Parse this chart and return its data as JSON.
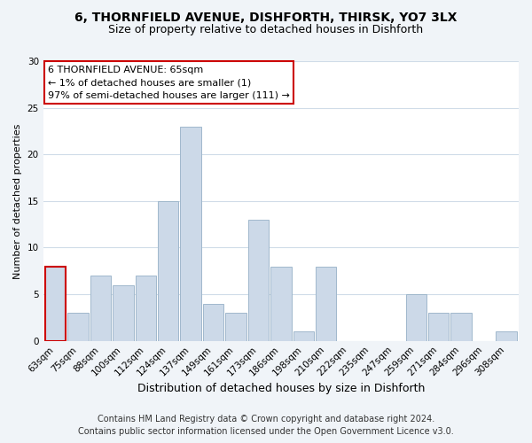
{
  "title": "6, THORNFIELD AVENUE, DISHFORTH, THIRSK, YO7 3LX",
  "subtitle": "Size of property relative to detached houses in Dishforth",
  "xlabel": "Distribution of detached houses by size in Dishforth",
  "ylabel": "Number of detached properties",
  "bar_labels": [
    "63sqm",
    "75sqm",
    "88sqm",
    "100sqm",
    "112sqm",
    "124sqm",
    "137sqm",
    "149sqm",
    "161sqm",
    "173sqm",
    "186sqm",
    "198sqm",
    "210sqm",
    "222sqm",
    "235sqm",
    "247sqm",
    "259sqm",
    "271sqm",
    "284sqm",
    "296sqm",
    "308sqm"
  ],
  "bar_values": [
    8,
    3,
    7,
    6,
    7,
    15,
    23,
    4,
    3,
    13,
    8,
    1,
    8,
    0,
    0,
    0,
    5,
    3,
    3,
    0,
    1
  ],
  "bar_color": "#ccd9e8",
  "bar_edge_color": "#a0b8cc",
  "highlight_bar_index": 0,
  "highlight_edge_color": "#cc0000",
  "ylim": [
    0,
    30
  ],
  "yticks": [
    0,
    5,
    10,
    15,
    20,
    25,
    30
  ],
  "annotation_title": "6 THORNFIELD AVENUE: 65sqm",
  "annotation_line1": "← 1% of detached houses are smaller (1)",
  "annotation_line2": "97% of semi-detached houses are larger (111) →",
  "annotation_box_facecolor": "#ffffff",
  "annotation_box_edgecolor": "#cc0000",
  "footer_line1": "Contains HM Land Registry data © Crown copyright and database right 2024.",
  "footer_line2": "Contains public sector information licensed under the Open Government Licence v3.0.",
  "figure_facecolor": "#f0f4f8",
  "axes_facecolor": "#ffffff",
  "grid_color": "#d0dce8",
  "title_fontsize": 10,
  "subtitle_fontsize": 9,
  "xlabel_fontsize": 9,
  "ylabel_fontsize": 8,
  "tick_fontsize": 7.5,
  "annotation_fontsize": 8,
  "footer_fontsize": 7
}
